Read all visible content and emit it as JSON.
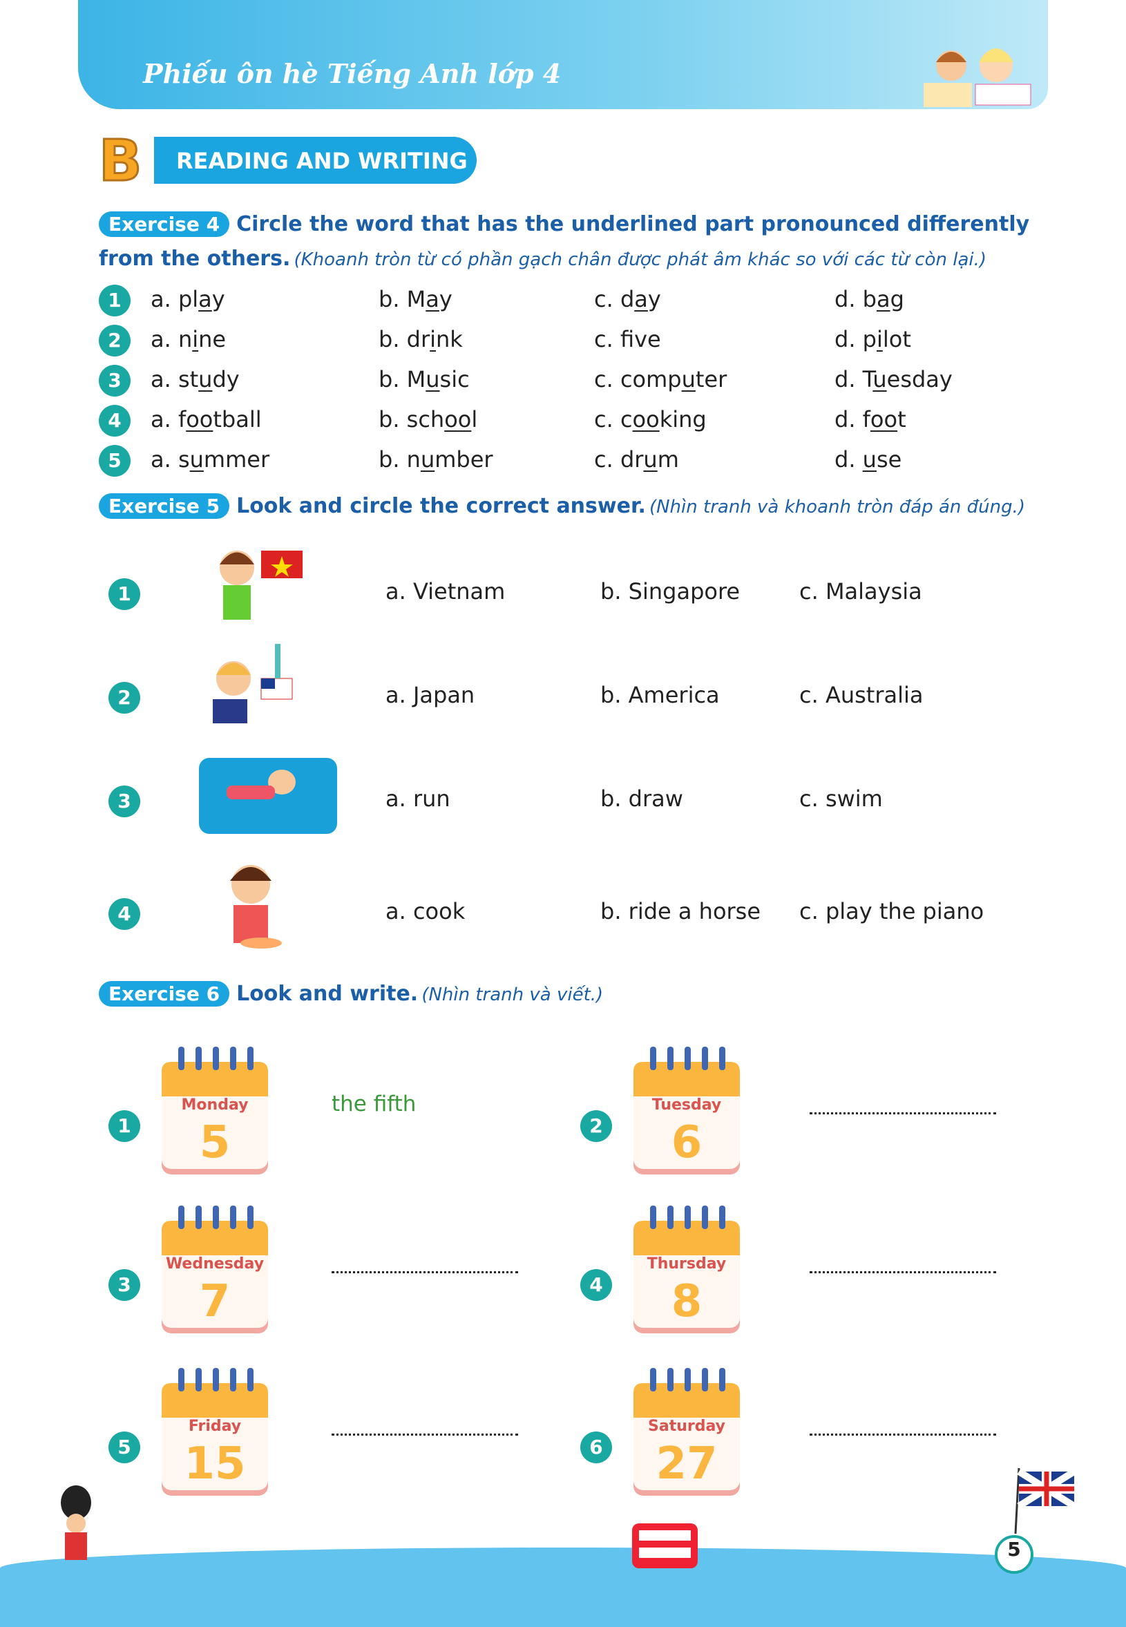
{
  "header": {
    "title": "Phiếu ôn hè Tiếng Anh lớp 4"
  },
  "section": {
    "letter": "B",
    "title": "READING AND WRITING"
  },
  "ex4": {
    "label": "Exercise 4",
    "instruction": "Circle the word that has the underlined part pronounced differently from the others.",
    "translation": "(Khoanh tròn từ có phần gạch chân được phát âm khác so với các từ còn lại.)",
    "rows": [
      {
        "n": "1",
        "opts": [
          [
            "a. pl",
            "a",
            "y"
          ],
          [
            "b. M",
            "a",
            "y"
          ],
          [
            "c. d",
            "a",
            "y"
          ],
          [
            "d. b",
            "a",
            "g"
          ]
        ]
      },
      {
        "n": "2",
        "opts": [
          [
            "a. n",
            "i",
            "ne"
          ],
          [
            "b. dr",
            "i",
            "nk"
          ],
          [
            "c. f",
            "i",
            "ve"
          ],
          [
            "d. p",
            "i",
            "lot"
          ]
        ]
      },
      {
        "n": "3",
        "opts": [
          [
            "a. st",
            "u",
            "dy"
          ],
          [
            "b. M",
            "u",
            "sic"
          ],
          [
            "c. comp",
            "u",
            "ter"
          ],
          [
            "d. T",
            "u",
            "esday"
          ]
        ]
      },
      {
        "n": "4",
        "opts": [
          [
            "a. f",
            "oo",
            "tball"
          ],
          [
            "b. sch",
            "oo",
            "l"
          ],
          [
            "c. c",
            "oo",
            "king"
          ],
          [
            "d. f",
            "oo",
            "t"
          ]
        ]
      },
      {
        "n": "5",
        "opts": [
          [
            "a. s",
            "u",
            "mmer"
          ],
          [
            "b. n",
            "u",
            "mber"
          ],
          [
            "c. dr",
            "u",
            "m"
          ],
          [
            "d. ",
            "u",
            "se"
          ]
        ]
      }
    ]
  },
  "ex5": {
    "label": "Exercise 5",
    "instruction": "Look and circle the correct answer.",
    "translation": "(Nhìn tranh và khoanh tròn đáp án đúng.)",
    "rows": [
      {
        "n": "1",
        "image": "boy-with-vietnam-flag",
        "opts": [
          "a. Vietnam",
          "b. Singapore",
          "c. Malaysia"
        ]
      },
      {
        "n": "2",
        "image": "girl-with-american-flag",
        "opts": [
          "a. Japan",
          "b. America",
          "c. Australia"
        ]
      },
      {
        "n": "3",
        "image": "girl-swimming",
        "opts": [
          "a. run",
          "b. draw",
          "c. swim"
        ]
      },
      {
        "n": "4",
        "image": "girl-cooking",
        "opts": [
          "a. cook",
          "b. ride a horse",
          "c. play the piano"
        ]
      }
    ]
  },
  "ex6": {
    "label": "Exercise 6",
    "instruction": "Look and write.",
    "translation": "(Nhìn tranh và viết.)",
    "items": [
      {
        "n": "1",
        "day": "Monday",
        "date": "5",
        "answer": "the fifth"
      },
      {
        "n": "2",
        "day": "Tuesday",
        "date": "6",
        "answer": ""
      },
      {
        "n": "3",
        "day": "Wednesday",
        "date": "7",
        "answer": ""
      },
      {
        "n": "4",
        "day": "Thursday",
        "date": "8",
        "answer": ""
      },
      {
        "n": "5",
        "day": "Friday",
        "date": "15",
        "answer": ""
      },
      {
        "n": "6",
        "day": "Saturday",
        "date": "27",
        "answer": ""
      }
    ]
  },
  "colors": {
    "accent": "#1aa4e0",
    "number": "#1aa8a2",
    "heading": "#1b5fa8",
    "answer": "#3a9a3a",
    "calendar_top": "#fbb63f",
    "calendar_day": "#d9534f"
  },
  "page": {
    "number": "5"
  }
}
